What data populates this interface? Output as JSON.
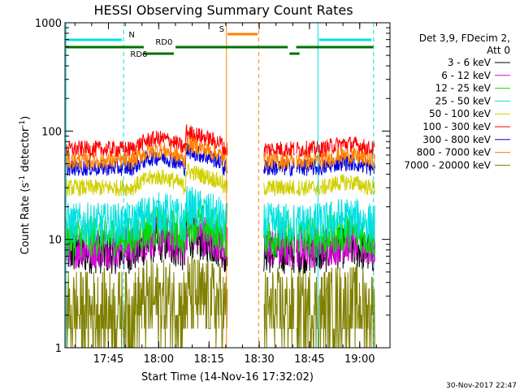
{
  "chart_data": {
    "type": "line",
    "title": "HESSI Observing Summary Count Rates",
    "xlabel": "Start Time (14-Nov-16 17:32:02)",
    "ylabel_parts": [
      "Count Rate (s",
      "-1",
      " detector",
      "-1",
      ")"
    ],
    "yscale": "log",
    "ylim": [
      1,
      1000
    ],
    "xlim_minutes": [
      0,
      97
    ],
    "x_tick_labels": [
      "17:45",
      "18:00",
      "18:15",
      "18:30",
      "18:45",
      "19:00"
    ],
    "x_tick_minutes": [
      12.97,
      27.97,
      42.97,
      57.97,
      72.97,
      87.97
    ],
    "y_tick_labels": [
      "1",
      "10",
      "100",
      "1000"
    ],
    "legend_header": [
      "Det 3,9, FDecim 2,",
      "Att 0"
    ],
    "series": [
      {
        "name": "3 - 6 keV",
        "color": "#000000",
        "base": 7.5
      },
      {
        "name": "6 - 12 keV",
        "color": "#e000e0",
        "base": 8.5
      },
      {
        "name": "12 - 25 keV",
        "color": "#00e000",
        "base": 10.5
      },
      {
        "name": "25 - 50 keV",
        "color": "#00e0e0",
        "base": 14
      },
      {
        "name": "50 - 100 keV",
        "color": "#d0d000",
        "base": 30
      },
      {
        "name": "100 - 300 keV",
        "color": "#ff0000",
        "base": 68
      },
      {
        "name": "300 - 800 keV",
        "color": "#0000e0",
        "base": 46
      },
      {
        "name": "800 - 7000 keV",
        "color": "#ff8000",
        "base": 53
      },
      {
        "name": "7000 - 20000 keV",
        "color": "#808000",
        "base": 2.2
      }
    ],
    "data_gaps_minutes": [
      [
        48.5,
        59.3
      ],
      [
        68.5,
        69.0
      ]
    ],
    "vertical_markers": [
      {
        "minute": 0.3,
        "color": "#00e0e0",
        "style": "solid"
      },
      {
        "minute": 17.5,
        "color": "#00e0e0",
        "style": "dashed"
      },
      {
        "minute": 48.2,
        "color": "#ff8000",
        "style": "solid"
      },
      {
        "minute": 57.8,
        "color": "#ff8000",
        "style": "dashed"
      },
      {
        "minute": 75.5,
        "color": "#00e0e0",
        "style": "solid"
      },
      {
        "minute": 92.1,
        "color": "#00e0e0",
        "style": "dashed"
      }
    ],
    "flag_bars": [
      {
        "label": "N",
        "color": "#00e0e0",
        "level": 1,
        "segments": [
          [
            0.5,
            17.0
          ],
          [
            75.8,
            91.5
          ]
        ],
        "label_minute": 19.0
      },
      {
        "label": "S",
        "color": "#ff8000",
        "level": 0,
        "segments": [
          [
            48.5,
            57.5
          ]
        ],
        "label_minute": 46.0
      },
      {
        "label": "RD0",
        "color": "#007000",
        "level": 2,
        "segments": [
          [
            0.3,
            23.5
          ],
          [
            33.0,
            66.5
          ],
          [
            69.0,
            92.0
          ]
        ],
        "label_minute": 27.0
      },
      {
        "label": "RD6",
        "color": "#007000",
        "level": 3,
        "segments": [
          [
            23.5,
            32.5
          ],
          [
            67.0,
            70.0
          ]
        ],
        "label_minute": 19.5
      }
    ]
  },
  "footer": {
    "timestamp": "30-Nov-2017 22:47"
  }
}
